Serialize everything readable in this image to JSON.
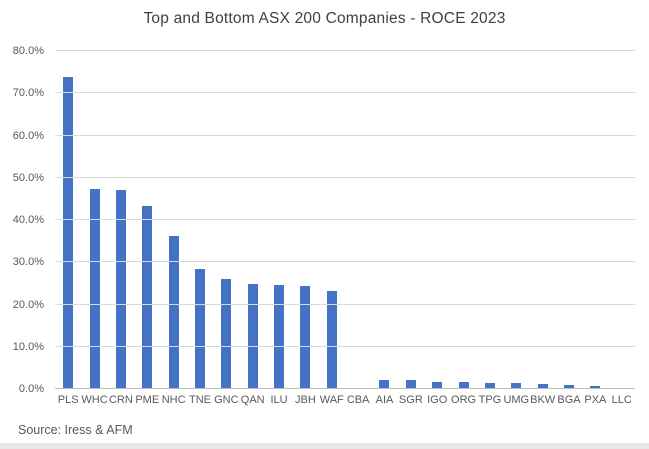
{
  "title": "Top and Bottom ASX 200 Companies - ROCE 2023",
  "source_note": "Source: Iress & AFM",
  "colors": {
    "bar": "#4472C4",
    "gridline": "#D9D9D9",
    "axis_line": "#BFBFBF",
    "title_text": "#404040",
    "tick_text": "#595959"
  },
  "chart_data": {
    "type": "bar",
    "title": "Top and Bottom ASX 200 Companies - ROCE 2023",
    "categories": [
      "PLS",
      "WHC",
      "CRN",
      "PME",
      "NHC",
      "TNE",
      "GNC",
      "QAN",
      "ILU",
      "JBH",
      "WAF",
      "CBA",
      "AIA",
      "SGR",
      "IGO",
      "ORG",
      "TPG",
      "UMG",
      "BKW",
      "BGA",
      "PXA",
      "LLC"
    ],
    "values": [
      73.5,
      47.0,
      46.8,
      43.0,
      36.0,
      28.2,
      25.7,
      24.7,
      24.4,
      24.1,
      22.9,
      0.0,
      1.8,
      1.8,
      1.5,
      1.4,
      1.3,
      1.2,
      0.9,
      0.6,
      0.4,
      0.0
    ],
    "value_unit": "%",
    "xlabel": "",
    "ylabel": "",
    "ylim": [
      0,
      80
    ],
    "ytick_step": 10,
    "ytick_labels": [
      "0.0%",
      "10.0%",
      "20.0%",
      "30.0%",
      "40.0%",
      "50.0%",
      "60.0%",
      "70.0%",
      "80.0%"
    ],
    "grid": true,
    "legend": false,
    "legend_position": "none",
    "bar_color": "#4472C4"
  }
}
